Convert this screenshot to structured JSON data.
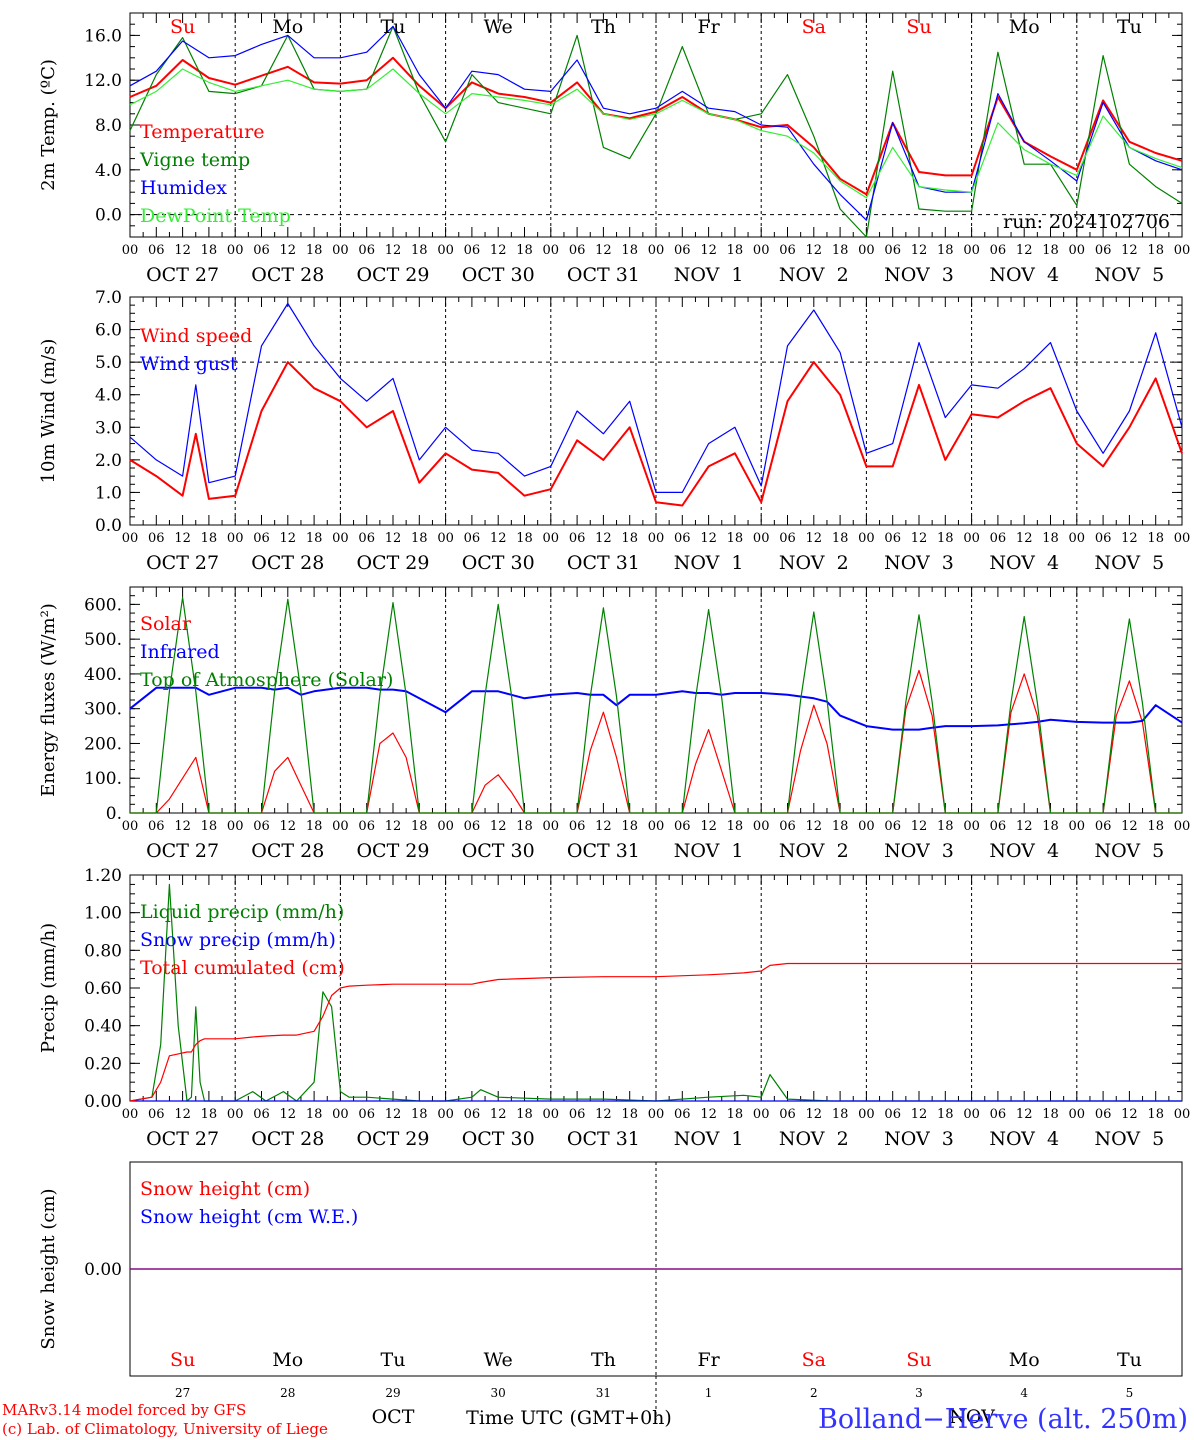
{
  "run_label": "run: 2024102706",
  "credits": {
    "line1": "MARv3.14 model forced by GFS",
    "line2": "(c) Lab. of Climatology, University of Liege"
  },
  "location": "Bolland−Herve (alt. 250m)",
  "footer": {
    "month_left": "OCT",
    "month_right": "NOV",
    "time_axis_title": "Time UTC (GMT+0h)"
  },
  "days": [
    {
      "weekday": "Su",
      "weekend": true,
      "date_label": "OCT 27",
      "day_num": "27"
    },
    {
      "weekday": "Mo",
      "weekend": false,
      "date_label": "OCT 28",
      "day_num": "28"
    },
    {
      "weekday": "Tu",
      "weekend": false,
      "date_label": "OCT 29",
      "day_num": "29"
    },
    {
      "weekday": "We",
      "weekend": false,
      "date_label": "OCT 30",
      "day_num": "30"
    },
    {
      "weekday": "Th",
      "weekend": false,
      "date_label": "OCT 31",
      "day_num": "31"
    },
    {
      "weekday": "Fr",
      "weekend": false,
      "date_label": "NOV  1",
      "day_num": "1"
    },
    {
      "weekday": "Sa",
      "weekend": true,
      "date_label": "NOV  2",
      "day_num": "2"
    },
    {
      "weekday": "Su",
      "weekend": true,
      "date_label": "NOV  3",
      "day_num": "3"
    },
    {
      "weekday": "Mo",
      "weekend": false,
      "date_label": "NOV  4",
      "day_num": "4"
    },
    {
      "weekday": "Tu",
      "weekend": false,
      "date_label": "NOV  5",
      "day_num": "5"
    }
  ],
  "hour_ticks": [
    "00",
    "06",
    "12",
    "18"
  ],
  "colors": {
    "red": "#ff0000",
    "green": "#008000",
    "blue": "#0000ff",
    "light_green": "#33ee33",
    "purple": "#800080",
    "location": "#3333ff",
    "axis": "#000000"
  },
  "chart_data": [
    {
      "type": "line",
      "id": "temp",
      "ylabel": "2m Temp. (ºC)",
      "ylim": [
        -2.0,
        18.0
      ],
      "yticks": [
        "0.0",
        "4.0",
        "8.0",
        "12.0",
        "16.0"
      ],
      "ytick_values": [
        0,
        4,
        8,
        12,
        16
      ],
      "ref_lines": [
        0
      ],
      "x": [
        0,
        6,
        12,
        18,
        24,
        30,
        36,
        42,
        48,
        54,
        60,
        66,
        72,
        78,
        84,
        90,
        96,
        102,
        108,
        114,
        120,
        126,
        132,
        138,
        144,
        150,
        156,
        162,
        168,
        174,
        180,
        186,
        192,
        198,
        204,
        210,
        216,
        222,
        228,
        234,
        240
      ],
      "series": [
        {
          "name": "Temperature",
          "color": "red",
          "values": [
            10.5,
            11.5,
            13.8,
            12.2,
            11.6,
            12.4,
            13.2,
            11.8,
            11.7,
            12.0,
            14.0,
            11.5,
            9.5,
            11.8,
            10.8,
            10.5,
            10.0,
            11.8,
            9.0,
            8.6,
            9.2,
            10.5,
            9.0,
            8.5,
            7.8,
            8.0,
            6.0,
            3.2,
            1.8,
            8.2,
            3.8,
            3.5,
            3.5,
            10.5,
            6.5,
            5.2,
            4.0,
            10.2,
            6.5,
            5.5,
            4.8
          ]
        },
        {
          "name": "Vigne temp",
          "color": "green",
          "values": [
            7.5,
            12.5,
            15.8,
            11.0,
            10.8,
            11.5,
            16.0,
            11.2,
            11.0,
            11.2,
            16.8,
            10.8,
            6.5,
            12.5,
            10.0,
            9.5,
            9.0,
            16.0,
            6.0,
            5.0,
            9.0,
            15.0,
            9.0,
            8.5,
            9.0,
            12.5,
            7.0,
            0.5,
            -2.0,
            12.8,
            0.5,
            0.3,
            0.3,
            14.5,
            4.5,
            4.5,
            0.8,
            14.2,
            4.5,
            2.5,
            1.0
          ]
        },
        {
          "name": "Humidex",
          "color": "blue",
          "values": [
            11.5,
            12.8,
            15.5,
            14.0,
            14.2,
            15.2,
            16.0,
            14.0,
            14.0,
            14.5,
            16.8,
            12.5,
            9.5,
            12.8,
            12.5,
            11.2,
            11.0,
            13.8,
            9.5,
            9.0,
            9.5,
            11.0,
            9.5,
            9.2,
            8.0,
            7.8,
            4.5,
            1.8,
            -0.5,
            8.2,
            2.5,
            2.0,
            2.0,
            10.8,
            6.5,
            4.8,
            3.0,
            10.0,
            6.0,
            4.8,
            4.0
          ]
        },
        {
          "name": "DewPoint Temp",
          "color": "light_green",
          "values": [
            9.8,
            11.0,
            13.0,
            11.8,
            11.0,
            11.5,
            12.0,
            11.2,
            11.0,
            11.2,
            13.0,
            10.8,
            9.0,
            10.8,
            10.5,
            10.2,
            9.8,
            11.2,
            9.0,
            8.5,
            9.0,
            10.2,
            9.0,
            8.5,
            7.5,
            7.0,
            5.5,
            3.0,
            1.5,
            6.0,
            2.5,
            2.2,
            2.0,
            8.2,
            5.8,
            4.5,
            3.5,
            8.8,
            6.0,
            5.0,
            4.2
          ]
        }
      ]
    },
    {
      "type": "line",
      "id": "wind",
      "ylabel": "10m Wind (m/s)",
      "ylim": [
        0.0,
        7.0
      ],
      "yticks": [
        "0.0",
        "1.0",
        "2.0",
        "3.0",
        "4.0",
        "5.0",
        "6.0",
        "7.0"
      ],
      "ytick_values": [
        0,
        1,
        2,
        3,
        4,
        5,
        6,
        7
      ],
      "ref_lines": [
        5
      ],
      "x": [
        0,
        6,
        12,
        15,
        18,
        24,
        30,
        36,
        42,
        48,
        54,
        60,
        66,
        72,
        78,
        84,
        90,
        96,
        102,
        108,
        114,
        120,
        126,
        132,
        138,
        144,
        150,
        156,
        162,
        168,
        174,
        180,
        186,
        192,
        198,
        204,
        210,
        216,
        222,
        228,
        234,
        240
      ],
      "series": [
        {
          "name": "Wind speed",
          "color": "red",
          "values": [
            2.0,
            1.5,
            0.9,
            2.8,
            0.8,
            0.9,
            3.5,
            5.0,
            4.2,
            3.8,
            3.0,
            3.5,
            1.3,
            2.2,
            1.7,
            1.6,
            0.9,
            1.1,
            2.6,
            2.0,
            3.0,
            0.7,
            0.6,
            1.8,
            2.2,
            0.7,
            3.8,
            5.0,
            4.0,
            1.8,
            1.8,
            4.3,
            2.0,
            3.4,
            3.3,
            3.8,
            4.2,
            2.5,
            1.8,
            3.0,
            4.5,
            2.2
          ]
        },
        {
          "name": "Wind gust",
          "color": "blue",
          "values": [
            2.7,
            2.0,
            1.5,
            4.3,
            1.3,
            1.5,
            5.5,
            6.8,
            5.5,
            4.5,
            3.8,
            4.5,
            2.0,
            3.0,
            2.3,
            2.2,
            1.5,
            1.8,
            3.5,
            2.8,
            3.8,
            1.0,
            1.0,
            2.5,
            3.0,
            1.2,
            5.5,
            6.6,
            5.3,
            2.2,
            2.5,
            5.6,
            3.3,
            4.3,
            4.2,
            4.8,
            5.6,
            3.5,
            2.2,
            3.5,
            5.9,
            3.0
          ]
        }
      ]
    },
    {
      "type": "line",
      "id": "energy",
      "ylabel": "Energy fluxes (W/m²)",
      "ylim": [
        0,
        650
      ],
      "yticks": [
        "0.",
        "100.",
        "200.",
        "300.",
        "400.",
        "500.",
        "600."
      ],
      "ytick_values": [
        0,
        100,
        200,
        300,
        400,
        500,
        600
      ],
      "ref_lines": [],
      "x": [
        0,
        6,
        9,
        12,
        15,
        18,
        24,
        30,
        33,
        36,
        39,
        42,
        48,
        54,
        57,
        60,
        63,
        66,
        72,
        78,
        81,
        84,
        87,
        90,
        96,
        102,
        105,
        108,
        111,
        114,
        120,
        126,
        129,
        132,
        135,
        138,
        144,
        150,
        153,
        156,
        159,
        162,
        168,
        174,
        177,
        180,
        183,
        186,
        192,
        198,
        201,
        204,
        207,
        210,
        216,
        222,
        225,
        228,
        231,
        234,
        240
      ],
      "series": [
        {
          "name": "Solar",
          "color": "red",
          "values": [
            0,
            0,
            40,
            100,
            160,
            0,
            0,
            0,
            120,
            160,
            80,
            0,
            0,
            0,
            200,
            230,
            160,
            0,
            0,
            0,
            80,
            110,
            60,
            0,
            0,
            0,
            180,
            290,
            160,
            0,
            0,
            0,
            140,
            240,
            120,
            0,
            0,
            0,
            180,
            310,
            200,
            0,
            0,
            0,
            300,
            410,
            280,
            0,
            0,
            0,
            290,
            400,
            280,
            0,
            0,
            0,
            280,
            380,
            260,
            0,
            0
          ]
        },
        {
          "name": "Infrared",
          "color": "blue",
          "values": [
            300,
            360,
            360,
            360,
            360,
            340,
            360,
            360,
            355,
            360,
            340,
            350,
            360,
            360,
            355,
            355,
            350,
            330,
            290,
            350,
            350,
            350,
            340,
            330,
            340,
            345,
            340,
            340,
            310,
            340,
            340,
            350,
            345,
            345,
            340,
            345,
            345,
            340,
            335,
            330,
            320,
            280,
            250,
            240,
            240,
            240,
            245,
            250,
            250,
            252,
            255,
            258,
            262,
            268,
            262,
            260,
            260,
            260,
            265,
            310,
            260
          ]
        },
        {
          "name": "Top of Atmosphere (Solar)",
          "color": "green",
          "values": [
            0,
            0,
            350,
            620,
            350,
            0,
            0,
            0,
            350,
            615,
            350,
            0,
            0,
            0,
            340,
            605,
            340,
            0,
            0,
            0,
            340,
            600,
            340,
            0,
            0,
            0,
            335,
            590,
            335,
            0,
            0,
            0,
            330,
            585,
            330,
            0,
            0,
            0,
            325,
            578,
            325,
            0,
            0,
            0,
            320,
            570,
            320,
            0,
            0,
            0,
            318,
            565,
            318,
            0,
            0,
            0,
            315,
            558,
            315,
            0,
            0
          ]
        }
      ]
    },
    {
      "type": "line",
      "id": "precip",
      "ylabel": "Precip (mm/h)",
      "ylim": [
        0.0,
        1.2
      ],
      "yticks": [
        "0.00",
        "0.20",
        "0.40",
        "0.60",
        "0.80",
        "1.00",
        "1.20"
      ],
      "ytick_values": [
        0,
        0.2,
        0.4,
        0.6,
        0.8,
        1.0,
        1.2
      ],
      "ref_lines": [],
      "x": [
        0,
        5,
        7,
        9,
        11,
        13,
        14,
        15,
        16,
        17,
        18,
        24,
        28,
        31,
        35,
        38,
        42,
        44,
        46,
        48,
        50,
        54,
        60,
        66,
        72,
        78,
        80,
        84,
        96,
        108,
        120,
        132,
        140,
        144,
        146,
        150,
        160,
        192,
        240
      ],
      "series": [
        {
          "name": "Liquid precip (mm/h)",
          "color": "green",
          "values": [
            0,
            0.02,
            0.3,
            1.15,
            0.4,
            0.0,
            0.02,
            0.5,
            0.1,
            0.0,
            0.0,
            0.0,
            0.05,
            0.0,
            0.05,
            0.0,
            0.1,
            0.58,
            0.5,
            0.05,
            0.02,
            0.02,
            0.01,
            0.0,
            0.0,
            0.02,
            0.06,
            0.02,
            0.01,
            0.01,
            0.0,
            0.02,
            0.03,
            0.02,
            0.14,
            0.01,
            0.0,
            0.0,
            0.0
          ]
        },
        {
          "name": "Snow precip (mm/h)",
          "color": "blue",
          "values": [
            0,
            0,
            0,
            0,
            0,
            0,
            0,
            0,
            0,
            0,
            0,
            0,
            0,
            0,
            0,
            0,
            0,
            0,
            0,
            0,
            0,
            0,
            0,
            0,
            0,
            0,
            0,
            0,
            0,
            0,
            0,
            0,
            0,
            0,
            0,
            0,
            0,
            0,
            0
          ]
        },
        {
          "name": "Total cumulated (cm)",
          "color": "red",
          "values": [
            0,
            0.02,
            0.1,
            0.24,
            0.25,
            0.26,
            0.26,
            0.3,
            0.32,
            0.33,
            0.33,
            0.33,
            0.34,
            0.345,
            0.35,
            0.35,
            0.37,
            0.45,
            0.56,
            0.6,
            0.61,
            0.615,
            0.62,
            0.62,
            0.62,
            0.62,
            0.63,
            0.645,
            0.655,
            0.66,
            0.66,
            0.67,
            0.68,
            0.69,
            0.72,
            0.73,
            0.73,
            0.73,
            0.73
          ]
        }
      ]
    },
    {
      "type": "line",
      "id": "snow",
      "ylabel": "Snow height (cm)",
      "ylim": [
        -1,
        1
      ],
      "yticks": [
        "0.00"
      ],
      "ytick_values": [
        0
      ],
      "ref_lines": [],
      "x": [
        0,
        240
      ],
      "series": [
        {
          "name": "Snow height (cm)",
          "color": "red",
          "values": [
            0,
            0
          ]
        },
        {
          "name": "Snow height (cm W.E.)",
          "color": "blue",
          "values": [
            0,
            0
          ]
        }
      ]
    }
  ]
}
